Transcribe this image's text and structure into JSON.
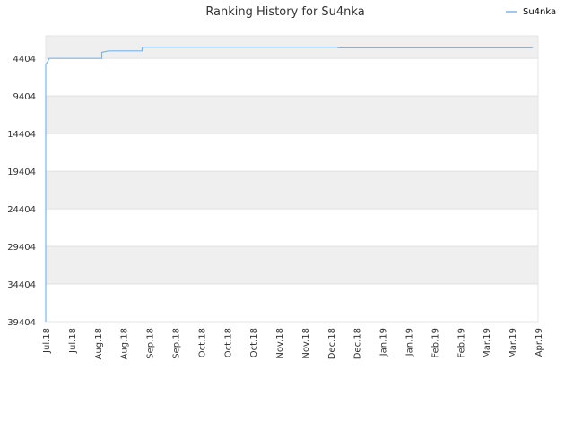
{
  "chart_data": {
    "type": "line",
    "title": "Ranking History for Su4nka",
    "xlabel": "",
    "ylabel": "",
    "y_reversed": true,
    "ylim": [
      39404,
      1404
    ],
    "y_ticks": [
      4404,
      9404,
      14404,
      19404,
      24404,
      29404,
      34404,
      39404
    ],
    "x_range": [
      "2018-07-01",
      "2019-04-01"
    ],
    "x_ticks": [
      {
        "date": "2018-07-01",
        "label": "Jul.18"
      },
      {
        "date": "2018-07-15",
        "label": "Jul.18"
      },
      {
        "date": "2018-08-01",
        "label": "Aug.18"
      },
      {
        "date": "2018-08-15",
        "label": "Aug.18"
      },
      {
        "date": "2018-09-01",
        "label": "Sep.18"
      },
      {
        "date": "2018-09-15",
        "label": "Sep.18"
      },
      {
        "date": "2018-10-01",
        "label": "Oct.18"
      },
      {
        "date": "2018-10-15",
        "label": "Oct.18"
      },
      {
        "date": "2018-11-01",
        "label": "Oct.18"
      },
      {
        "date": "2018-11-15",
        "label": "Nov.18"
      },
      {
        "date": "2018-12-01",
        "label": "Nov.18"
      },
      {
        "date": "2018-12-15",
        "label": "Dec.18"
      },
      {
        "date": "2019-01-01",
        "label": "Dec.18"
      },
      {
        "date": "2019-01-15",
        "label": "Jan.19"
      },
      {
        "date": "2019-02-01",
        "label": "Jan.19"
      },
      {
        "date": "2019-02-15",
        "label": "Feb.19"
      },
      {
        "date": "2019-03-01",
        "label": "Feb.19"
      },
      {
        "date": "2019-03-15",
        "label": "Mar.19"
      },
      {
        "date": "2019-04-01",
        "label": "Mar.19"
      },
      {
        "date": "2019-04-15",
        "label": "Apr.19"
      }
    ],
    "grid": true,
    "alternating_bands": true,
    "legend": "top-right",
    "series": [
      {
        "name": "Su4nka",
        "color": "#7cb5ec",
        "step": true,
        "points": [
          {
            "x": "2018-07-01",
            "y": 39404
          },
          {
            "x": "2018-07-01",
            "y": 5200
          },
          {
            "x": "2018-07-02",
            "y": 4900
          },
          {
            "x": "2018-07-03",
            "y": 4404
          },
          {
            "x": "2018-08-02",
            "y": 4404
          },
          {
            "x": "2018-08-02",
            "y": 3600
          },
          {
            "x": "2018-08-06",
            "y": 3400
          },
          {
            "x": "2018-08-25",
            "y": 3400
          },
          {
            "x": "2018-08-25",
            "y": 2900
          },
          {
            "x": "2018-12-15",
            "y": 2900
          },
          {
            "x": "2018-12-15",
            "y": 3000
          },
          {
            "x": "2019-04-05",
            "y": 3000
          }
        ]
      }
    ]
  }
}
